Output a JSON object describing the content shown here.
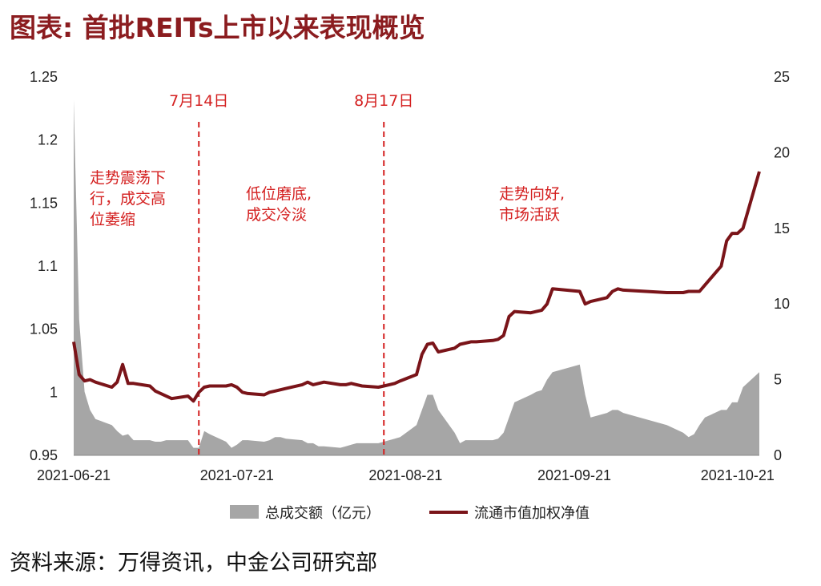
{
  "title": "图表: 首批REITs上市以来表现概览",
  "source": "资料来源：万得资讯，中金公司研究部",
  "colors": {
    "title": "#8b1c1f",
    "line": "#7a1419",
    "area": "#a6a6a6",
    "annotation": "#d42020"
  },
  "chart_data": {
    "type": "area+line",
    "x_dates": [
      "2021-06-21",
      "2021-06-22",
      "2021-06-23",
      "2021-06-24",
      "2021-06-25",
      "2021-06-28",
      "2021-06-29",
      "2021-06-30",
      "2021-07-01",
      "2021-07-02",
      "2021-07-05",
      "2021-07-06",
      "2021-07-07",
      "2021-07-08",
      "2021-07-09",
      "2021-07-12",
      "2021-07-13",
      "2021-07-14",
      "2021-07-15",
      "2021-07-16",
      "2021-07-19",
      "2021-07-20",
      "2021-07-21",
      "2021-07-22",
      "2021-07-23",
      "2021-07-26",
      "2021-07-27",
      "2021-07-28",
      "2021-07-29",
      "2021-07-30",
      "2021-08-02",
      "2021-08-03",
      "2021-08-04",
      "2021-08-05",
      "2021-08-06",
      "2021-08-09",
      "2021-08-10",
      "2021-08-11",
      "2021-08-12",
      "2021-08-13",
      "2021-08-16",
      "2021-08-17",
      "2021-08-18",
      "2021-08-19",
      "2021-08-20",
      "2021-08-23",
      "2021-08-24",
      "2021-08-25",
      "2021-08-26",
      "2021-08-27",
      "2021-08-30",
      "2021-08-31",
      "2021-09-01",
      "2021-09-02",
      "2021-09-03",
      "2021-09-06",
      "2021-09-07",
      "2021-09-08",
      "2021-09-09",
      "2021-09-10",
      "2021-09-13",
      "2021-09-14",
      "2021-09-15",
      "2021-09-16",
      "2021-09-17",
      "2021-09-22",
      "2021-09-23",
      "2021-09-24",
      "2021-09-27",
      "2021-09-28",
      "2021-09-29",
      "2021-09-30",
      "2021-10-08",
      "2021-10-11",
      "2021-10-12",
      "2021-10-13",
      "2021-10-14",
      "2021-10-15",
      "2021-10-18",
      "2021-10-19",
      "2021-10-20",
      "2021-10-21",
      "2021-10-22",
      "2021-10-25"
    ],
    "x_tick_labels": [
      "2021-06-21",
      "2021-07-21",
      "2021-08-21",
      "2021-09-21",
      "2021-10-21"
    ],
    "left_axis": {
      "min": 0.95,
      "max": 1.25,
      "ticks": [
        "0.95",
        "1",
        "1.05",
        "1.1",
        "1.15",
        "1.2",
        "1.25"
      ]
    },
    "right_axis": {
      "min": 0,
      "max": 25,
      "ticks": [
        "0",
        "5",
        "10",
        "15",
        "20",
        "25"
      ]
    },
    "series": [
      {
        "name": "总成交额（亿元）",
        "type": "area",
        "axis": "right",
        "values": [
          23.5,
          9.0,
          4.2,
          3.0,
          2.4,
          2.0,
          1.6,
          1.3,
          1.4,
          1.0,
          1.0,
          0.9,
          0.9,
          1.0,
          1.0,
          1.0,
          0.5,
          0.5,
          1.6,
          1.4,
          0.9,
          0.5,
          0.7,
          1.0,
          1.0,
          0.9,
          1.0,
          1.2,
          1.2,
          1.1,
          1.0,
          0.8,
          0.8,
          0.6,
          0.6,
          0.5,
          0.6,
          0.7,
          0.8,
          0.8,
          0.8,
          0.9,
          1.0,
          1.1,
          1.2,
          2.0,
          3.0,
          4.0,
          4.0,
          3.0,
          1.5,
          0.8,
          1.0,
          1.0,
          1.0,
          1.0,
          1.1,
          1.5,
          2.5,
          3.5,
          4.0,
          4.2,
          4.3,
          5.0,
          5.5,
          6.0,
          4.0,
          2.5,
          2.8,
          3.0,
          3.0,
          2.8,
          2.0,
          1.5,
          1.2,
          1.4,
          2.0,
          2.5,
          3.0,
          3.0,
          3.5,
          3.5,
          4.5,
          5.5
        ]
      },
      {
        "name": "流通市值加权净值",
        "type": "line",
        "axis": "left",
        "values": [
          1.04,
          1.014,
          1.009,
          1.01,
          1.008,
          1.004,
          1.008,
          1.022,
          1.007,
          1.007,
          1.005,
          1.001,
          0.999,
          0.997,
          0.995,
          0.997,
          0.993,
          1.0,
          1.004,
          1.005,
          1.005,
          1.006,
          1.004,
          1.0,
          0.999,
          0.998,
          1.0,
          1.001,
          1.002,
          1.003,
          1.006,
          1.008,
          1.006,
          1.007,
          1.008,
          1.006,
          1.006,
          1.007,
          1.006,
          1.005,
          1.004,
          1.005,
          1.006,
          1.007,
          1.009,
          1.014,
          1.03,
          1.038,
          1.039,
          1.032,
          1.035,
          1.038,
          1.039,
          1.04,
          1.04,
          1.041,
          1.042,
          1.045,
          1.06,
          1.064,
          1.063,
          1.064,
          1.065,
          1.07,
          1.082,
          1.08,
          1.07,
          1.072,
          1.075,
          1.08,
          1.082,
          1.081,
          1.079,
          1.079,
          1.08,
          1.08,
          1.08,
          1.085,
          1.1,
          1.12,
          1.126,
          1.126,
          1.13,
          1.175
        ]
      }
    ],
    "vlines": [
      {
        "date": "2021-07-14",
        "label": "7月14日"
      },
      {
        "date": "2021-08-17",
        "label": "8月17日"
      }
    ],
    "annotations": [
      {
        "lines": [
          "走势震荡下",
          "行，成交高",
          "位萎缩"
        ]
      },
      {
        "lines": [
          "低位磨底,",
          "成交冷淡"
        ]
      },
      {
        "lines": [
          "走势向好,",
          "市场活跃"
        ]
      }
    ],
    "legend": {
      "position": "bottom",
      "items": [
        "总成交额（亿元）",
        "流通市值加权净值"
      ]
    }
  }
}
